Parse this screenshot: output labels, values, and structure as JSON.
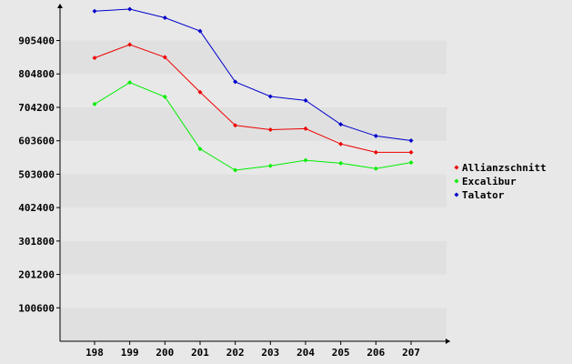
{
  "chart_data": {
    "type": "line",
    "title": "",
    "xlabel": "",
    "ylabel": "",
    "categories": [
      "198",
      "199",
      "200",
      "201",
      "202",
      "203",
      "204",
      "205",
      "206",
      "207"
    ],
    "ylim": [
      0,
      1000000
    ],
    "yticks": [
      100600,
      201200,
      301800,
      402400,
      503000,
      603600,
      704200,
      804800,
      905400
    ],
    "ytick_labels": [
      "100600",
      "201200",
      "301800",
      "402400",
      "503000",
      "603600",
      "704200",
      "804800",
      "905400"
    ],
    "grid": "horizontal alternating bands",
    "legend_position": "right",
    "series": [
      {
        "name": "Allianzschnitt",
        "color": "#ee0000",
        "values": [
          853000,
          893000,
          855000,
          750000,
          650000,
          637000,
          640000,
          594000,
          569000,
          569000
        ]
      },
      {
        "name": "Excalibur",
        "color": "#00ee00",
        "values": [
          714000,
          779000,
          736000,
          579000,
          515000,
          528000,
          545000,
          536000,
          520000,
          538000
        ]
      },
      {
        "name": "Talator",
        "color": "#0000cc",
        "values": [
          994000,
          1000000,
          974000,
          934000,
          781000,
          737000,
          725000,
          653000,
          618000,
          604000
        ]
      }
    ]
  }
}
